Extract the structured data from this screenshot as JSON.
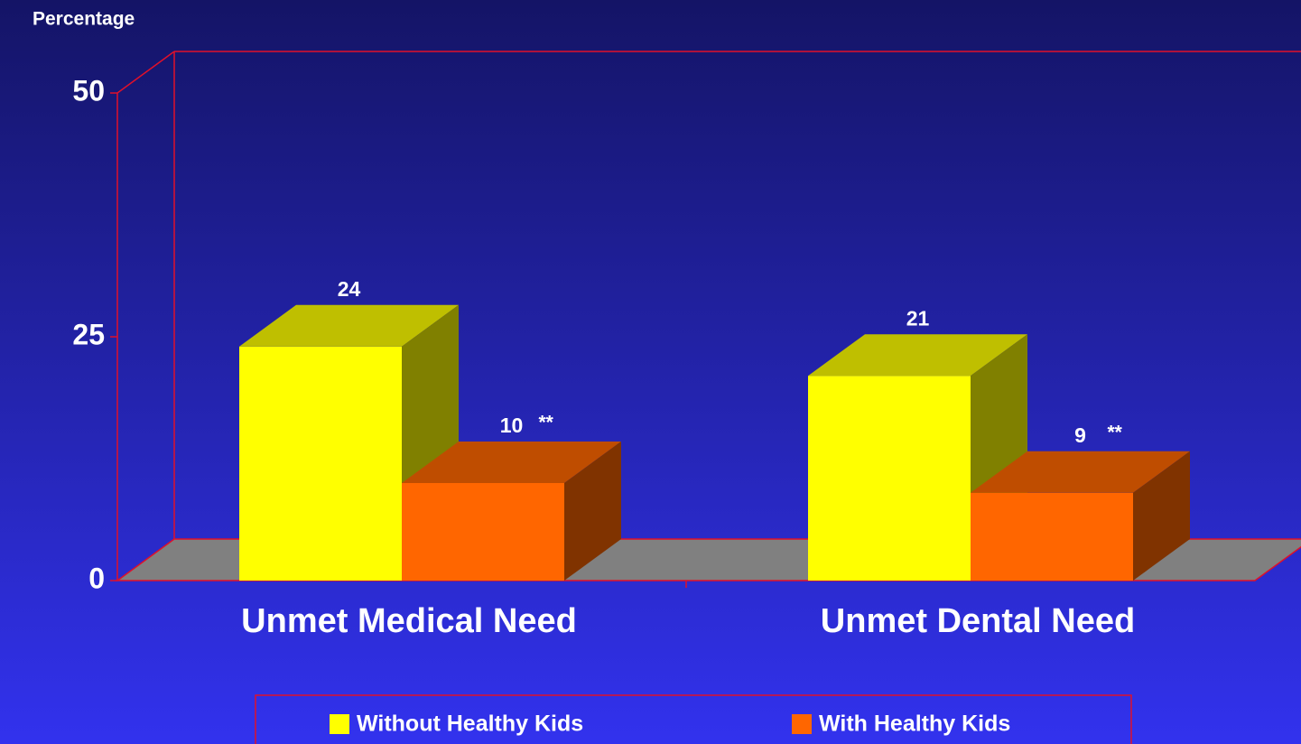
{
  "chart_data": {
    "type": "bar3d",
    "y_label": "Percentage",
    "categories": [
      "Unmet Medical Need",
      "Unmet Dental Need"
    ],
    "series": [
      {
        "name": "Without Healthy Kids",
        "color": "#ffff00",
        "values": [
          24,
          21
        ]
      },
      {
        "name": "With Healthy Kids",
        "color": "#ff6600",
        "values": [
          10,
          9
        ],
        "value_annotations": [
          "**",
          "**"
        ]
      }
    ],
    "ylim": [
      0,
      50
    ],
    "yticks": [
      0,
      25,
      50
    ],
    "grid": false
  }
}
